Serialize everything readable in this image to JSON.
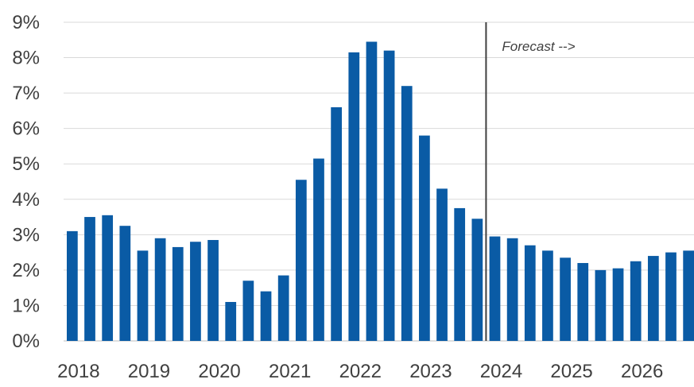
{
  "chart_data": {
    "type": "bar",
    "title": "",
    "xlabel": "",
    "ylabel": "",
    "ylim": [
      0,
      9
    ],
    "y_ticks": [
      "0%",
      "1%",
      "2%",
      "3%",
      "4%",
      "5%",
      "6%",
      "7%",
      "8%",
      "9%"
    ],
    "x_tick_labels": [
      "2018",
      "2019",
      "2020",
      "2021",
      "2022",
      "2023",
      "2024",
      "2025",
      "2026"
    ],
    "bar_color": "#0a5ba5",
    "grid": true,
    "legend": "none",
    "categories": [
      "2018 Q1",
      "2018 Q2",
      "2018 Q3",
      "2018 Q4",
      "2019 Q1",
      "2019 Q2",
      "2019 Q3",
      "2019 Q4",
      "2020 Q1",
      "2020 Q2",
      "2020 Q3",
      "2020 Q4",
      "2021 Q1",
      "2021 Q2",
      "2021 Q3",
      "2021 Q4",
      "2022 Q1",
      "2022 Q2",
      "2022 Q3",
      "2022 Q4",
      "2023 Q1",
      "2023 Q2",
      "2023 Q3",
      "2023 Q4",
      "2024 Q1",
      "2024 Q2",
      "2024 Q3",
      "2024 Q4",
      "2025 Q1",
      "2025 Q2",
      "2025 Q3",
      "2025 Q4",
      "2026 Q1",
      "2026 Q2",
      "2026 Q3",
      "2026 Q4"
    ],
    "values": [
      3.1,
      3.5,
      3.55,
      3.25,
      2.55,
      2.9,
      2.65,
      2.8,
      2.85,
      1.1,
      1.7,
      1.4,
      1.85,
      4.55,
      5.15,
      6.6,
      8.15,
      8.45,
      8.2,
      7.2,
      5.8,
      4.3,
      3.75,
      3.45,
      2.95,
      2.9,
      2.7,
      2.55,
      2.35,
      2.2,
      2.0,
      2.05,
      2.25,
      2.4,
      2.5,
      2.55
    ],
    "annotation": {
      "text": "Forecast -->",
      "divider_after_category": "2023 Q4"
    }
  }
}
